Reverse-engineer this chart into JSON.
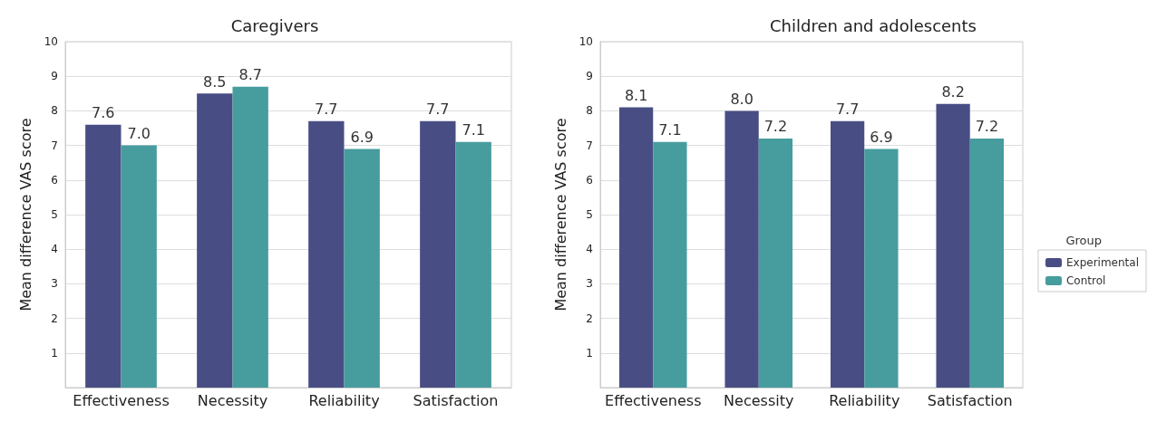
{
  "chart_data": [
    {
      "type": "bar",
      "title": "Caregivers",
      "ylabel": "Mean difference VAS score",
      "categories": [
        "Effectiveness",
        "Necessity",
        "Reliability",
        "Satisfaction"
      ],
      "series": [
        {
          "color": "#484e84",
          "values": [
            7.6,
            8.5,
            7.7,
            7.7
          ],
          "value_labels": [
            "7.6",
            "8.5",
            "7.7",
            "7.7"
          ]
        },
        {
          "color": "#479c9e",
          "values": [
            7.0,
            8.7,
            6.9,
            7.1
          ],
          "value_labels": [
            "7.0",
            "8.7",
            "6.9",
            "7.1"
          ]
        }
      ],
      "ylim": [
        0,
        10
      ],
      "yticks": [
        1,
        2,
        3,
        4,
        5,
        6,
        7,
        8,
        9,
        10
      ],
      "grid": "y",
      "legend": false
    },
    {
      "type": "bar",
      "title": "Children and adolescents",
      "ylabel": "Mean difference VAS score",
      "legend_title": "Group",
      "categories": [
        "Effectiveness",
        "Necessity",
        "Reliability",
        "Satisfaction"
      ],
      "series": [
        {
          "name": "Experimental",
          "color": "#484e84",
          "values": [
            8.1,
            8.0,
            7.7,
            8.2
          ],
          "value_labels": [
            "8.1",
            "8.0",
            "7.7",
            "8.2"
          ]
        },
        {
          "name": "Control",
          "color": "#479c9e",
          "values": [
            7.1,
            7.2,
            6.9,
            7.2
          ],
          "value_labels": [
            "7.1",
            "7.2",
            "6.9",
            "7.2"
          ]
        }
      ],
      "ylim": [
        0,
        10
      ],
      "yticks": [
        1,
        2,
        3,
        4,
        5,
        6,
        7,
        8,
        9,
        10
      ],
      "grid": "y",
      "legend": "right"
    }
  ]
}
